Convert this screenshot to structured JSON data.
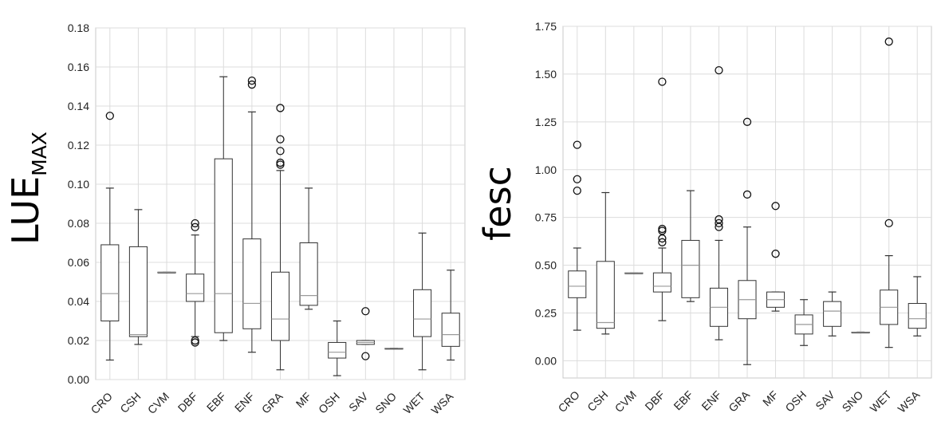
{
  "chart_data": [
    {
      "type": "box",
      "ylabel_main": "LUE",
      "ylabel_sub": "MAX",
      "xlabel": "",
      "ylim": [
        0.0,
        0.18
      ],
      "yticks": [
        0.0,
        0.02,
        0.04,
        0.06,
        0.08,
        0.1,
        0.12,
        0.14,
        0.16,
        0.18
      ],
      "ytick_labels": [
        "0.00",
        "0.02",
        "0.04",
        "0.06",
        "0.08",
        "0.10",
        "0.12",
        "0.14",
        "0.16",
        "0.18"
      ],
      "categories": [
        "CRO",
        "CSH",
        "CVM",
        "DBF",
        "EBF",
        "ENF",
        "GRA",
        "MF",
        "OSH",
        "SAV",
        "SNO",
        "WET",
        "WSA"
      ],
      "boxes": [
        {
          "q1": 0.03,
          "median": 0.044,
          "q3": 0.069,
          "whislo": 0.01,
          "whishi": 0.098,
          "fliers": [
            0.135
          ]
        },
        {
          "q1": 0.022,
          "median": 0.023,
          "q3": 0.068,
          "whislo": 0.018,
          "whishi": 0.087,
          "fliers": []
        },
        {
          "q1": 0.055,
          "median": 0.055,
          "q3": 0.055,
          "whislo": 0.055,
          "whishi": 0.055,
          "fliers": []
        },
        {
          "q1": 0.04,
          "median": 0.044,
          "q3": 0.054,
          "whislo": 0.022,
          "whishi": 0.074,
          "fliers": [
            0.08,
            0.078,
            0.02,
            0.019
          ]
        },
        {
          "q1": 0.024,
          "median": 0.044,
          "q3": 0.113,
          "whislo": 0.02,
          "whishi": 0.155,
          "fliers": []
        },
        {
          "q1": 0.026,
          "median": 0.039,
          "q3": 0.072,
          "whislo": 0.014,
          "whishi": 0.137,
          "fliers": [
            0.153,
            0.151
          ]
        },
        {
          "q1": 0.02,
          "median": 0.031,
          "q3": 0.055,
          "whislo": 0.005,
          "whishi": 0.107,
          "fliers": [
            0.139,
            0.123,
            0.117,
            0.111,
            0.11
          ]
        },
        {
          "q1": 0.038,
          "median": 0.043,
          "q3": 0.07,
          "whislo": 0.036,
          "whishi": 0.098,
          "fliers": []
        },
        {
          "q1": 0.011,
          "median": 0.014,
          "q3": 0.019,
          "whislo": 0.002,
          "whishi": 0.03,
          "fliers": []
        },
        {
          "q1": 0.018,
          "median": 0.019,
          "q3": 0.02,
          "whislo": 0.018,
          "whishi": 0.02,
          "fliers": [
            0.035,
            0.012
          ]
        },
        {
          "q1": 0.016,
          "median": 0.016,
          "q3": 0.016,
          "whislo": 0.016,
          "whishi": 0.016,
          "fliers": []
        },
        {
          "q1": 0.022,
          "median": 0.031,
          "q3": 0.046,
          "whislo": 0.005,
          "whishi": 0.075,
          "fliers": []
        },
        {
          "q1": 0.017,
          "median": 0.023,
          "q3": 0.034,
          "whislo": 0.01,
          "whishi": 0.056,
          "fliers": []
        }
      ]
    },
    {
      "type": "box",
      "ylabel_main": "fesc",
      "ylabel_sub": "",
      "xlabel": "",
      "ylim": [
        -0.09,
        1.75
      ],
      "yticks": [
        0.0,
        0.25,
        0.5,
        0.75,
        1.0,
        1.25,
        1.5,
        1.75
      ],
      "ytick_labels": [
        "0.00",
        "0.25",
        "0.50",
        "0.75",
        "1.00",
        "1.25",
        "1.50",
        "1.75"
      ],
      "categories": [
        "CRO",
        "CSH",
        "CVM",
        "DBF",
        "EBF",
        "ENF",
        "GRA",
        "MF",
        "OSH",
        "SAV",
        "SNO",
        "WET",
        "WSA"
      ],
      "boxes": [
        {
          "q1": 0.33,
          "median": 0.39,
          "q3": 0.47,
          "whislo": 0.16,
          "whishi": 0.59,
          "fliers": [
            1.13,
            0.95,
            0.89
          ]
        },
        {
          "q1": 0.17,
          "median": 0.2,
          "q3": 0.52,
          "whislo": 0.14,
          "whishi": 0.88,
          "fliers": []
        },
        {
          "q1": 0.46,
          "median": 0.46,
          "q3": 0.46,
          "whislo": 0.46,
          "whishi": 0.46,
          "fliers": []
        },
        {
          "q1": 0.36,
          "median": 0.39,
          "q3": 0.46,
          "whislo": 0.21,
          "whishi": 0.59,
          "fliers": [
            1.46,
            0.69,
            0.68,
            0.64,
            0.62
          ]
        },
        {
          "q1": 0.33,
          "median": 0.5,
          "q3": 0.63,
          "whislo": 0.31,
          "whishi": 0.89,
          "fliers": []
        },
        {
          "q1": 0.18,
          "median": 0.28,
          "q3": 0.38,
          "whislo": 0.11,
          "whishi": 0.63,
          "fliers": [
            1.52,
            0.74,
            0.72,
            0.7
          ]
        },
        {
          "q1": 0.22,
          "median": 0.32,
          "q3": 0.42,
          "whislo": -0.02,
          "whishi": 0.7,
          "fliers": [
            1.25,
            0.87
          ]
        },
        {
          "q1": 0.28,
          "median": 0.32,
          "q3": 0.36,
          "whislo": 0.26,
          "whishi": 0.36,
          "fliers": [
            0.81,
            0.56
          ]
        },
        {
          "q1": 0.14,
          "median": 0.19,
          "q3": 0.24,
          "whislo": 0.08,
          "whishi": 0.32,
          "fliers": []
        },
        {
          "q1": 0.18,
          "median": 0.26,
          "q3": 0.31,
          "whislo": 0.13,
          "whishi": 0.36,
          "fliers": []
        },
        {
          "q1": 0.15,
          "median": 0.15,
          "q3": 0.15,
          "whislo": 0.15,
          "whishi": 0.15,
          "fliers": []
        },
        {
          "q1": 0.19,
          "median": 0.28,
          "q3": 0.37,
          "whislo": 0.07,
          "whishi": 0.55,
          "fliers": [
            1.67,
            0.72
          ]
        },
        {
          "q1": 0.17,
          "median": 0.22,
          "q3": 0.3,
          "whislo": 0.13,
          "whishi": 0.44,
          "fliers": []
        }
      ]
    }
  ]
}
